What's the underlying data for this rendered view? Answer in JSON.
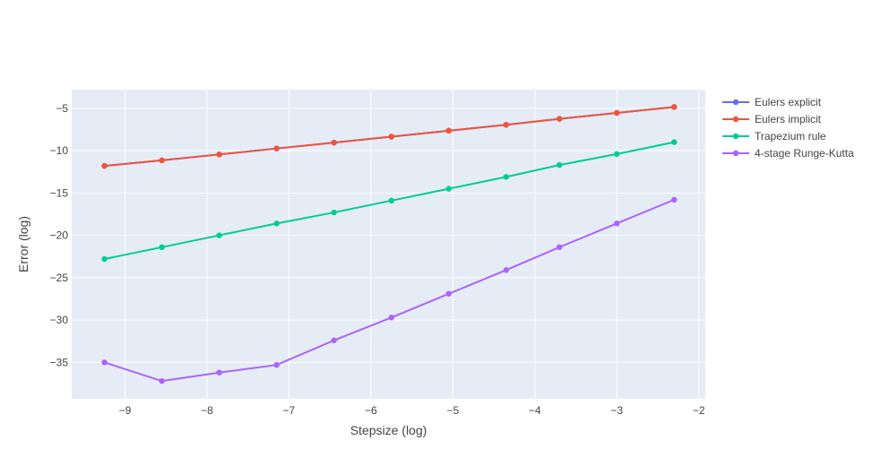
{
  "chart_data": {
    "type": "line",
    "title": "",
    "xlabel": "Stepsize (log)",
    "ylabel": "Error (log)",
    "xlim": [
      -9.65,
      -1.92
    ],
    "ylim": [
      -39.3,
      -2.8
    ],
    "xticks": [
      -9,
      -8,
      -7,
      -6,
      -5,
      -4,
      -3,
      -2
    ],
    "yticks": [
      -35,
      -30,
      -25,
      -20,
      -15,
      -10,
      -5
    ],
    "grid": true,
    "legend": "right",
    "x": [
      -9.25,
      -8.55,
      -7.85,
      -7.15,
      -6.45,
      -5.75,
      -5.05,
      -4.35,
      -3.7,
      -3.0,
      -2.3
    ],
    "series": [
      {
        "name": "Eulers explicit",
        "color": "#636efa",
        "values": [
          -11.8,
          -11.15,
          -10.45,
          -9.75,
          -9.05,
          -8.35,
          -7.65,
          -6.95,
          -6.25,
          -5.55,
          -4.85
        ]
      },
      {
        "name": "Eulers implicit",
        "color": "#ef553b",
        "values": [
          -11.8,
          -11.15,
          -10.45,
          -9.75,
          -9.05,
          -8.35,
          -7.65,
          -6.95,
          -6.25,
          -5.55,
          -4.85
        ]
      },
      {
        "name": "Trapezium rule",
        "color": "#00cc96",
        "values": [
          -22.8,
          -21.4,
          -20.0,
          -18.6,
          -17.3,
          -15.9,
          -14.5,
          -13.1,
          -11.7,
          -10.4,
          -9.0
        ]
      },
      {
        "name": "4-stage Runge-Kutta",
        "color": "#ab63fa",
        "values": [
          -35.0,
          -37.2,
          -36.2,
          -35.3,
          -32.4,
          -29.7,
          -26.9,
          -24.1,
          -21.4,
          -18.6,
          -15.8
        ]
      }
    ]
  }
}
